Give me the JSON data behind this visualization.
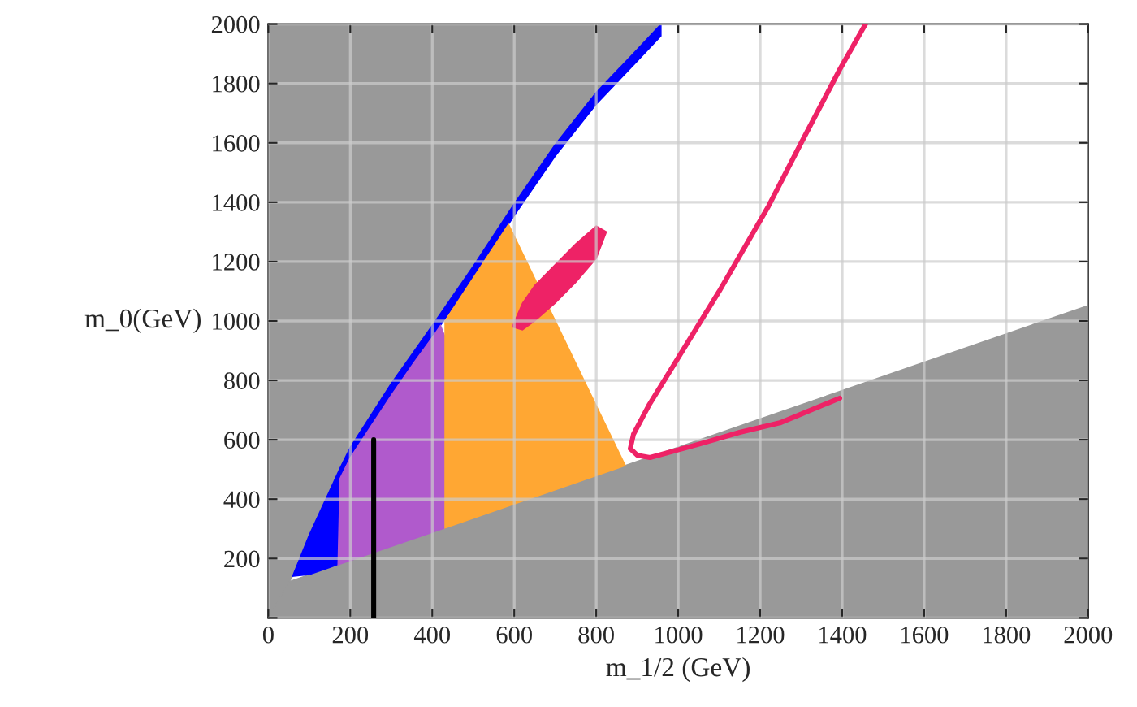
{
  "chart_data": {
    "type": "area",
    "xlabel": "m_1/2 (GeV)",
    "ylabel": "m_0(GeV)",
    "xlim": [
      0,
      2000
    ],
    "ylim": [
      0,
      2000
    ],
    "xticks": [
      0,
      200,
      400,
      600,
      800,
      1000,
      1200,
      1400,
      1600,
      1800,
      2000
    ],
    "yticks": [
      {
        "value": 0,
        "label": null
      },
      200,
      400,
      600,
      800,
      1000,
      1200,
      1400,
      1600,
      1800,
      2000
    ],
    "grid": true,
    "series": [
      {
        "color": "#999999",
        "x": [
          0,
          2000,
          2000,
          0
        ],
        "values": [
          98,
          1052,
          0,
          0
        ]
      },
      {
        "color": "#999999",
        "x": [
          0,
          59,
          100,
          150,
          170,
          175,
          200,
          300,
          400,
          500,
          600,
          700,
          800,
          900,
          958,
          0
        ],
        "values": [
          0,
          140,
          280,
          430,
          490,
          505,
          575,
          790,
          985,
          1185,
          1395,
          1595,
          1770,
          1915,
          2000,
          2000
        ]
      },
      {
        "color": "#0000ff",
        "x": [
          59,
          100,
          150,
          170,
          175,
          200,
          300,
          400,
          500,
          600,
          700,
          800,
          900,
          958,
          958,
          900,
          800,
          700,
          600,
          500,
          400,
          300,
          200,
          175,
          170,
          150,
          100
        ],
        "values": [
          140,
          280,
          430,
          490,
          505,
          575,
          790,
          985,
          1185,
          1395,
          1595,
          1770,
          1915,
          2000,
          1960,
          1875,
          1730,
          1555,
          1355,
          1145,
          945,
          750,
          540,
          470,
          180,
          170,
          146
        ]
      },
      {
        "color": "#b05acc",
        "x": [
          170,
          175,
          200,
          250,
          300,
          350,
          400,
          420,
          430,
          431
        ],
        "values": [
          179,
          470,
          540,
          645,
          750,
          850,
          945,
          985,
          950,
          303
        ]
      },
      {
        "color": "#ffa733",
        "x": [
          431,
          500,
          586,
          871,
          431
        ],
        "values": [
          1000,
          1145,
          1326,
          513,
          303
        ]
      },
      {
        "color": "#ee2266",
        "x": [
          595,
          620,
          650,
          700,
          750,
          800,
          825,
          800,
          750,
          700,
          650,
          620
        ],
        "values": [
          980,
          1060,
          1120,
          1190,
          1260,
          1320,
          1300,
          1210,
          1130,
          1060,
          1000,
          970
        ]
      },
      {
        "type": "line",
        "color": "#ee2266",
        "x": [
          1457,
          1394,
          1300,
          1220,
          1100,
          983,
          930,
          891,
          883,
          900,
          931,
          1050,
          1150,
          1248,
          1394
        ],
        "values": [
          2000,
          1847,
          1600,
          1386,
          1100,
          838,
          720,
          619,
          570,
          548,
          540,
          585,
          625,
          657,
          740
        ]
      },
      {
        "type": "line",
        "color": "#000000",
        "x": [
          257,
          257
        ],
        "values": [
          0,
          600
        ]
      }
    ]
  }
}
